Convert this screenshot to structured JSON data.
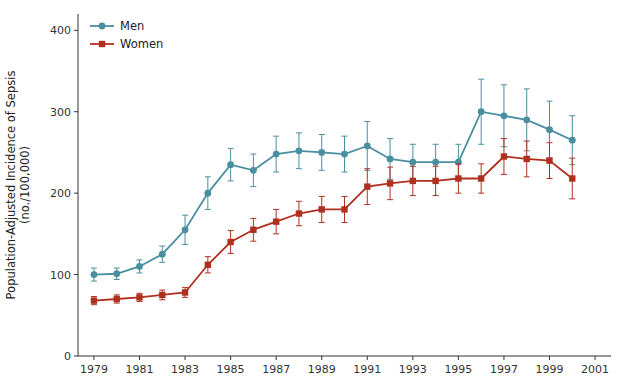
{
  "chart_data": {
    "type": "line",
    "ylabel": "Population-Adjusted Incidence of Sepsis\n(no./100,000)",
    "x": [
      1979,
      1980,
      1981,
      1982,
      1983,
      1984,
      1985,
      1986,
      1987,
      1988,
      1989,
      1990,
      1991,
      1992,
      1993,
      1994,
      1995,
      1996,
      1997,
      1998,
      1999,
      2000
    ],
    "series": [
      {
        "name": "Men",
        "color": "#4a8fa0",
        "marker": "circle",
        "values": [
          100,
          101,
          110,
          125,
          155,
          200,
          235,
          228,
          248,
          252,
          250,
          248,
          258,
          242,
          238,
          238,
          238,
          300,
          295,
          290,
          278,
          265
        ],
        "yerr_lower": [
          8,
          7,
          8,
          10,
          18,
          20,
          20,
          20,
          22,
          22,
          22,
          22,
          30,
          25,
          22,
          22,
          22,
          40,
          38,
          38,
          35,
          30
        ],
        "yerr_upper": [
          8,
          7,
          8,
          10,
          18,
          20,
          20,
          20,
          22,
          22,
          22,
          22,
          30,
          25,
          22,
          22,
          22,
          40,
          38,
          38,
          35,
          30
        ]
      },
      {
        "name": "Women",
        "color": "#b03020",
        "marker": "square",
        "values": [
          68,
          70,
          72,
          75,
          78,
          112,
          140,
          155,
          165,
          175,
          180,
          180,
          208,
          212,
          215,
          215,
          218,
          218,
          245,
          242,
          240,
          218
        ],
        "yerr_lower": [
          5,
          5,
          5,
          6,
          6,
          10,
          14,
          14,
          15,
          15,
          16,
          16,
          22,
          20,
          18,
          18,
          18,
          18,
          22,
          22,
          22,
          25
        ],
        "yerr_upper": [
          5,
          5,
          5,
          6,
          6,
          10,
          14,
          14,
          15,
          15,
          16,
          16,
          22,
          20,
          18,
          18,
          18,
          18,
          22,
          22,
          22,
          25
        ]
      }
    ],
    "xlim": [
      1978.3,
      2001.7
    ],
    "xticks": [
      1979,
      1981,
      1983,
      1985,
      1987,
      1989,
      1991,
      1993,
      1995,
      1997,
      1999,
      2001
    ],
    "ylim": [
      0,
      420
    ],
    "yticks": [
      0,
      100,
      200,
      300,
      400
    ],
    "legend": "upper left",
    "grid": false
  }
}
